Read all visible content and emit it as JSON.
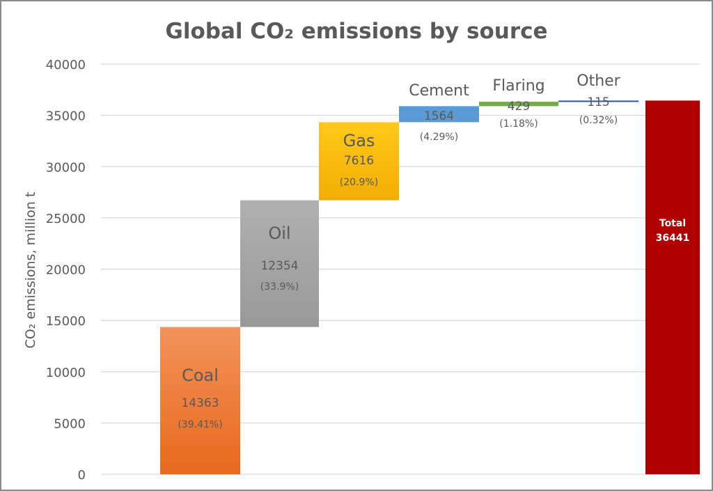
{
  "chart_data": {
    "type": "waterfall",
    "title": "Global CO₂ emissions by source",
    "ylabel": "CO₂ emissions, million t",
    "xlabel": "",
    "ylim": [
      0,
      40000
    ],
    "yticks": [
      0,
      5000,
      10000,
      15000,
      20000,
      25000,
      30000,
      35000,
      40000
    ],
    "grid": true,
    "legend": "none",
    "categories": [
      "Coal",
      "Oil",
      "Gas",
      "Cement",
      "Flaring",
      "Other"
    ],
    "values": [
      14363,
      12354,
      7616,
      1564,
      429,
      115
    ],
    "percent_labels": [
      "(39.41%)",
      "(33.9%)",
      "(20.9%)",
      "(4.29%)",
      "(1.18%)",
      "(0.32%)"
    ],
    "colors": [
      "#ed7d31",
      "#a5a5a5",
      "#ffc000",
      "#5b9bd5",
      "#70ad47",
      "#2f5597"
    ],
    "total": {
      "label": "Total",
      "value": 36441,
      "color": "#b00000"
    }
  }
}
